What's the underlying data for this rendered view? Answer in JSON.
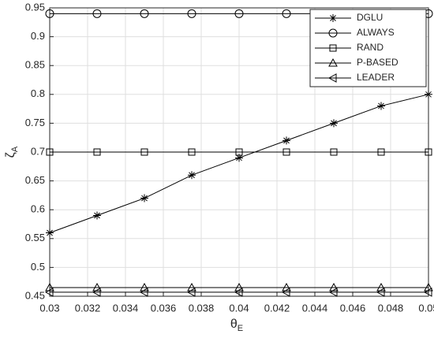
{
  "chart_data": {
    "type": "line",
    "xlabel": {
      "text": "θ",
      "subscript": "E"
    },
    "ylabel": {
      "text": "ζ",
      "subscript": "A"
    },
    "x": [
      0.03,
      0.0325,
      0.035,
      0.0375,
      0.04,
      0.0425,
      0.045,
      0.0475,
      0.05
    ],
    "series": [
      {
        "name": "DGLU",
        "color": "#000000",
        "marker": "star",
        "values": [
          0.56,
          0.59,
          0.62,
          0.66,
          0.69,
          0.72,
          0.75,
          0.78,
          0.8
        ]
      },
      {
        "name": "ALWAYS",
        "color": "#000000",
        "marker": "circle",
        "values": [
          0.94,
          0.94,
          0.94,
          0.94,
          0.94,
          0.94,
          0.94,
          0.94,
          0.94
        ]
      },
      {
        "name": "RAND",
        "color": "#000000",
        "marker": "square",
        "values": [
          0.7,
          0.7,
          0.7,
          0.7,
          0.7,
          0.7,
          0.7,
          0.7,
          0.7
        ]
      },
      {
        "name": "P-BASED",
        "color": "#000000",
        "marker": "triangle-up",
        "values": [
          0.465,
          0.465,
          0.465,
          0.465,
          0.465,
          0.465,
          0.465,
          0.465,
          0.465
        ]
      },
      {
        "name": "LEADER",
        "color": "#000000",
        "marker": "triangle-left",
        "values": [
          0.457,
          0.457,
          0.457,
          0.457,
          0.457,
          0.457,
          0.457,
          0.457,
          0.457
        ]
      }
    ],
    "xlim": [
      0.03,
      0.05
    ],
    "xticks": [
      0.03,
      0.032,
      0.034,
      0.036,
      0.038,
      0.04,
      0.042,
      0.044,
      0.046,
      0.048,
      0.05
    ],
    "ylim": [
      0.45,
      0.95
    ],
    "yticks": [
      0.45,
      0.5,
      0.55,
      0.6,
      0.65,
      0.7,
      0.75,
      0.8,
      0.85,
      0.9,
      0.95
    ],
    "grid": true,
    "legend": "upper right"
  }
}
